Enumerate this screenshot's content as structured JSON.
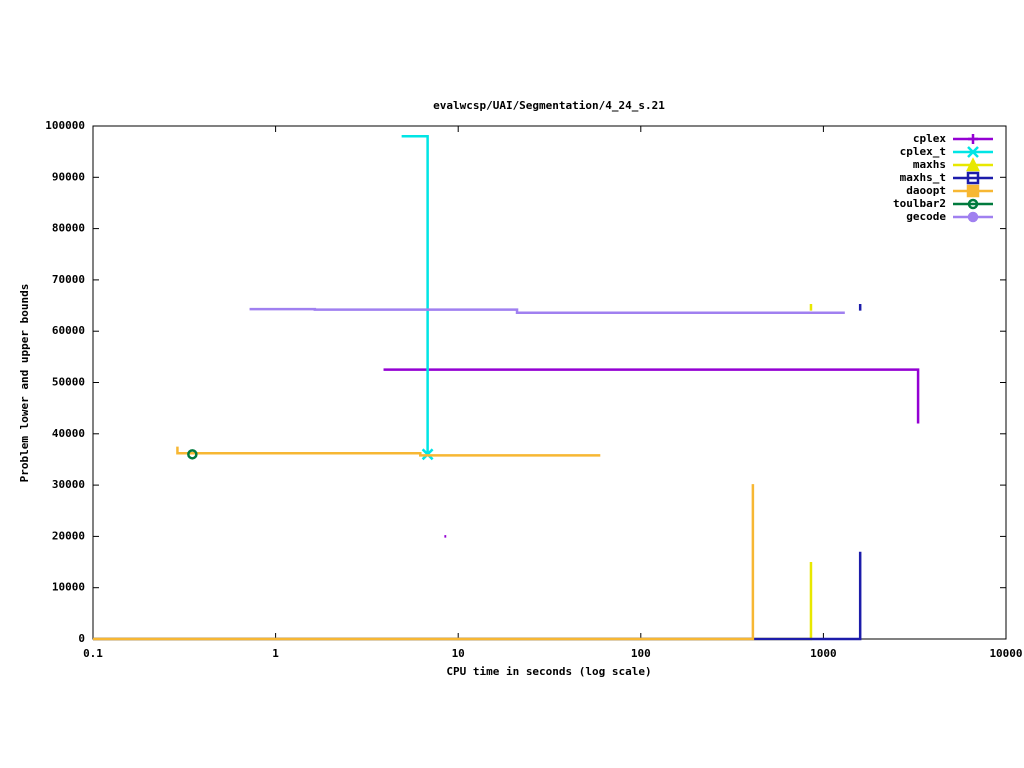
{
  "chart_data": {
    "type": "line",
    "title": "evalwcsp/UAI/Segmentation/4_24_s.21",
    "xlabel": "CPU time in seconds (log scale)",
    "ylabel": "Problem lower and upper bounds",
    "xlog": true,
    "xlim": [
      0.1,
      10000
    ],
    "xticks": [
      0.1,
      1,
      10,
      100,
      1000,
      10000
    ],
    "ylim": [
      0,
      100000
    ],
    "yticks": [
      0,
      10000,
      20000,
      30000,
      40000,
      50000,
      60000,
      70000,
      80000,
      90000,
      100000
    ],
    "legend": "top-right",
    "series": [
      {
        "name": "cplex",
        "color": "#9400d3",
        "marker": "plus",
        "x": [
          3.9,
          3300,
          3300,
          null,
          8.4,
          8.6
        ],
        "values": [
          52500,
          52500,
          42000,
          null,
          20000,
          20000
        ]
      },
      {
        "name": "cplex_t",
        "color": "#00e5e5",
        "marker": "x",
        "marker_at_end": true,
        "x": [
          4.9,
          6.8,
          6.8
        ],
        "values": [
          98000,
          98000,
          36000
        ]
      },
      {
        "name": "maxhs",
        "color": "#e8e800",
        "marker": "triangle",
        "x": [
          0.1,
          855,
          855,
          null,
          855,
          855
        ],
        "values": [
          0,
          0,
          15000,
          null,
          64000,
          65300
        ]
      },
      {
        "name": "maxhs_t",
        "color": "#1c1caa",
        "marker": "square",
        "x": [
          0.1,
          1590,
          1590,
          null,
          1590,
          1590
        ],
        "values": [
          0,
          0,
          17000,
          null,
          64000,
          65300
        ]
      },
      {
        "name": "daoopt",
        "color": "#f7b733",
        "marker": "filled-square",
        "x": [
          0.29,
          0.29,
          6.2,
          6.2,
          60,
          null,
          0.1,
          411,
          411
        ],
        "values": [
          37500,
          36200,
          36200,
          35800,
          35800,
          null,
          0,
          0,
          30200
        ]
      },
      {
        "name": "toulbar2",
        "color": "#007a3d",
        "marker": "circle",
        "marker_at_end": true,
        "x": [
          0.35
        ],
        "values": [
          36000
        ]
      },
      {
        "name": "gecode",
        "color": "#a080f0",
        "marker": "filled-circle",
        "x": [
          0.72,
          1.64,
          1.64,
          21,
          21,
          1310
        ],
        "values": [
          64300,
          64300,
          64200,
          64200,
          63600,
          63600
        ]
      }
    ]
  }
}
